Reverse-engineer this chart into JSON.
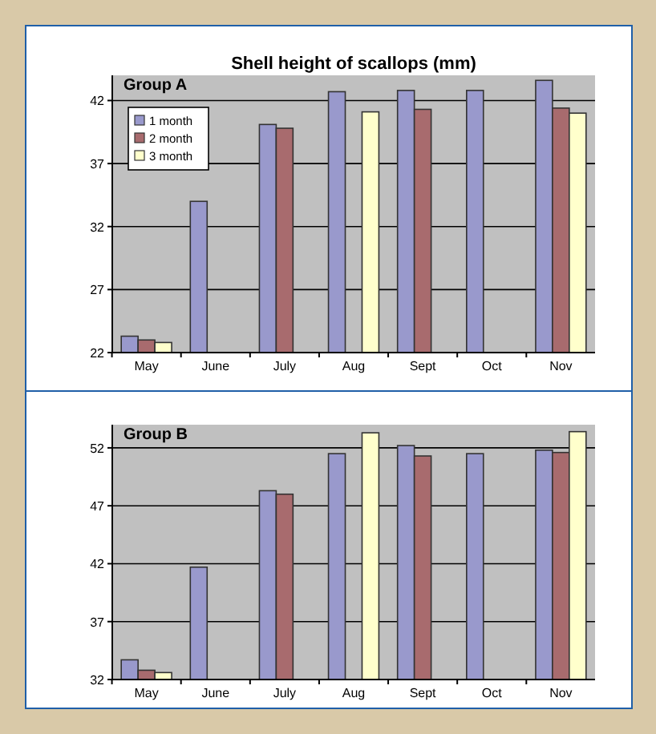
{
  "chart_data": [
    {
      "type": "bar",
      "title": "Shell height of scallops (mm)",
      "annotations": [
        "Group A"
      ],
      "categories": [
        "May",
        "June",
        "July",
        "Aug",
        "Sept",
        "Oct",
        "Nov"
      ],
      "series": [
        {
          "name": "1 month",
          "color": "#9999cc",
          "values": [
            23.3,
            34.0,
            40.1,
            42.7,
            42.8,
            42.8,
            43.6
          ]
        },
        {
          "name": "2 month",
          "color": "#a86b6e",
          "values": [
            23.0,
            null,
            39.8,
            null,
            41.3,
            null,
            41.4
          ]
        },
        {
          "name": "3 month",
          "color": "#ffffcc",
          "values": [
            22.8,
            null,
            null,
            41.1,
            null,
            null,
            41.0
          ]
        }
      ],
      "ylim": [
        22,
        44
      ],
      "yticks": [
        22,
        27,
        32,
        37,
        42
      ],
      "grid": "y",
      "legend": "top left"
    },
    {
      "type": "bar",
      "annotations": [
        "Group B"
      ],
      "categories": [
        "May",
        "June",
        "July",
        "Aug",
        "Sept",
        "Oct",
        "Nov"
      ],
      "series": [
        {
          "color": "#9999cc",
          "values": [
            33.7,
            41.7,
            48.3,
            51.5,
            52.2,
            51.5,
            51.8
          ]
        },
        {
          "color": "#a86b6e",
          "values": [
            32.8,
            null,
            48.0,
            null,
            51.3,
            null,
            51.6
          ]
        },
        {
          "color": "#ffffcc",
          "values": [
            32.6,
            null,
            null,
            53.3,
            null,
            null,
            53.4
          ]
        }
      ],
      "ylim": [
        32,
        54
      ],
      "yticks": [
        32,
        37,
        42,
        47,
        52
      ],
      "grid": "y"
    }
  ]
}
